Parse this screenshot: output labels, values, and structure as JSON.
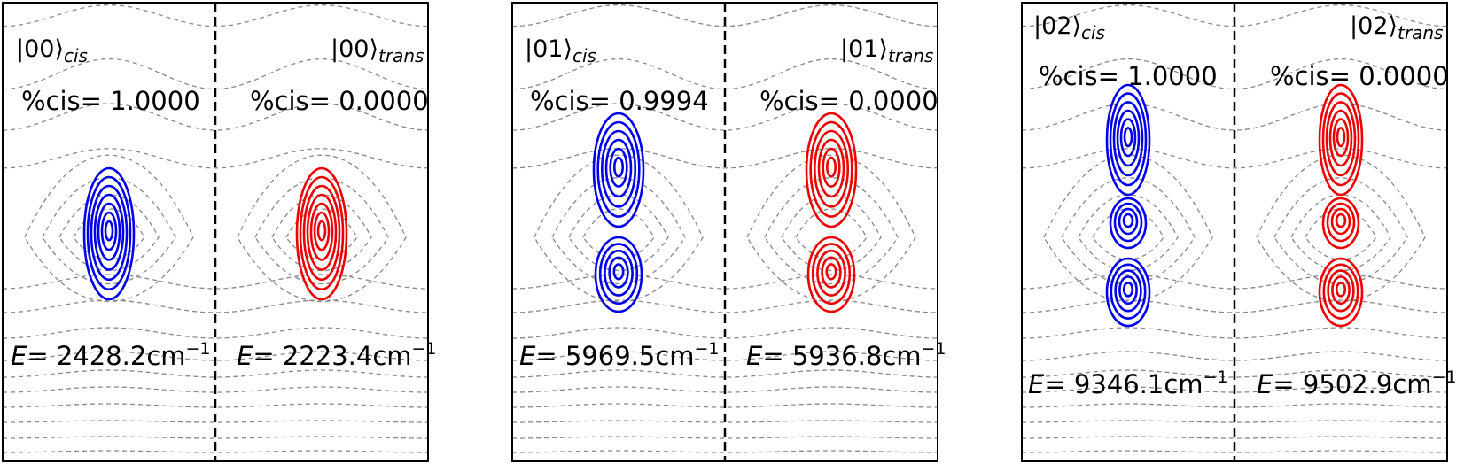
{
  "figure": {
    "colors": {
      "cis": "#0000ee",
      "trans": "#ee0000",
      "potential": "#888888",
      "frame": "#000000"
    },
    "panels": [
      {
        "id": "00",
        "left": {
          "state_ket": "|00⟩",
          "state_sub": "cis",
          "pct_label": "%cis",
          "pct_value": "= 1.0000",
          "energy_label": "E",
          "energy_value": "= 2428.2cm",
          "energy_unit_sup": "−1",
          "lobes": 1
        },
        "right": {
          "state_ket": "|00⟩",
          "state_sub": "trans",
          "pct_label": "%cis",
          "pct_value": "= 0.0000",
          "energy_label": "E",
          "energy_value": "= 2223.4cm",
          "energy_unit_sup": "−1",
          "lobes": 1
        }
      },
      {
        "id": "01",
        "left": {
          "state_ket": "|01⟩",
          "state_sub": "cis",
          "pct_label": "%cis",
          "pct_value": "= 0.9994",
          "energy_label": "E",
          "energy_value": "= 5969.5cm",
          "energy_unit_sup": "−1",
          "lobes": 2
        },
        "right": {
          "state_ket": "|01⟩",
          "state_sub": "trans",
          "pct_label": "%cis",
          "pct_value": "= 0.0000",
          "energy_label": "E",
          "energy_value": "= 5936.8cm",
          "energy_unit_sup": "−1",
          "lobes": 2
        }
      },
      {
        "id": "02",
        "left": {
          "state_ket": "|02⟩",
          "state_sub": "cis",
          "pct_label": "%cis",
          "pct_value": "= 1.0000",
          "energy_label": "E",
          "energy_value": "= 9346.1cm",
          "energy_unit_sup": "−1",
          "lobes": 3
        },
        "right": {
          "state_ket": "|02⟩",
          "state_sub": "trans",
          "pct_label": "%cis",
          "pct_value": "= 0.0000",
          "energy_label": "E",
          "energy_value": "= 9502.9cm",
          "energy_unit_sup": "−1",
          "lobes": 3
        }
      }
    ]
  }
}
